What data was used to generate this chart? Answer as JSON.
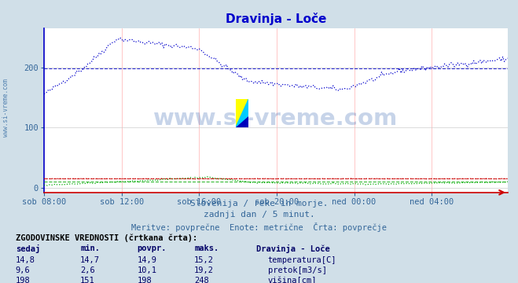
{
  "title": "Dravinja - Loče",
  "title_color": "#0000cc",
  "bg_color": "#d0dfe8",
  "plot_bg_color": "#ffffff",
  "grid_color_h": "#cccccc",
  "grid_color_v": "#ffb0b0",
  "x_tick_labels": [
    "sob 08:00",
    "sob 12:00",
    "sob 16:00",
    "sob 20:00",
    "ned 00:00",
    "ned 04:00"
  ],
  "x_tick_positions": [
    0,
    48,
    96,
    144,
    192,
    240
  ],
  "total_points": 288,
  "y_ticks": [
    0,
    100,
    200
  ],
  "y_min": -8,
  "y_max": 265,
  "subtitle1": "Slovenija / reke in morje.",
  "subtitle2": "zadnji dan / 5 minut.",
  "subtitle3": "Meritve: povprečne  Enote: metrične  Črta: povprečje",
  "table_header": "ZGODOVINSKE VREDNOSTI (črtkana črta):",
  "col_headers": [
    "sedaj",
    "min.",
    "povpr.",
    "maks.",
    "Dravinja - Loče"
  ],
  "row1": [
    "14,8",
    "14,7",
    "14,9",
    "15,2",
    "temperatura[C]"
  ],
  "row2": [
    "9,6",
    "2,6",
    "10,1",
    "19,2",
    "pretok[m3/s]"
  ],
  "row3": [
    "198",
    "151",
    "198",
    "248",
    "višina[cm]"
  ],
  "temp_color": "#cc0000",
  "pretok_color": "#00aa00",
  "visina_color": "#0000cc",
  "watermark": "www.si-vreme.com",
  "watermark_color": "#2255aa",
  "watermark_alpha": 0.25,
  "logo_colors": [
    "#ffff00",
    "#00ccff",
    "#0000ff"
  ],
  "left_label": "www.si-vreme.com",
  "left_label_color": "#4477aa"
}
